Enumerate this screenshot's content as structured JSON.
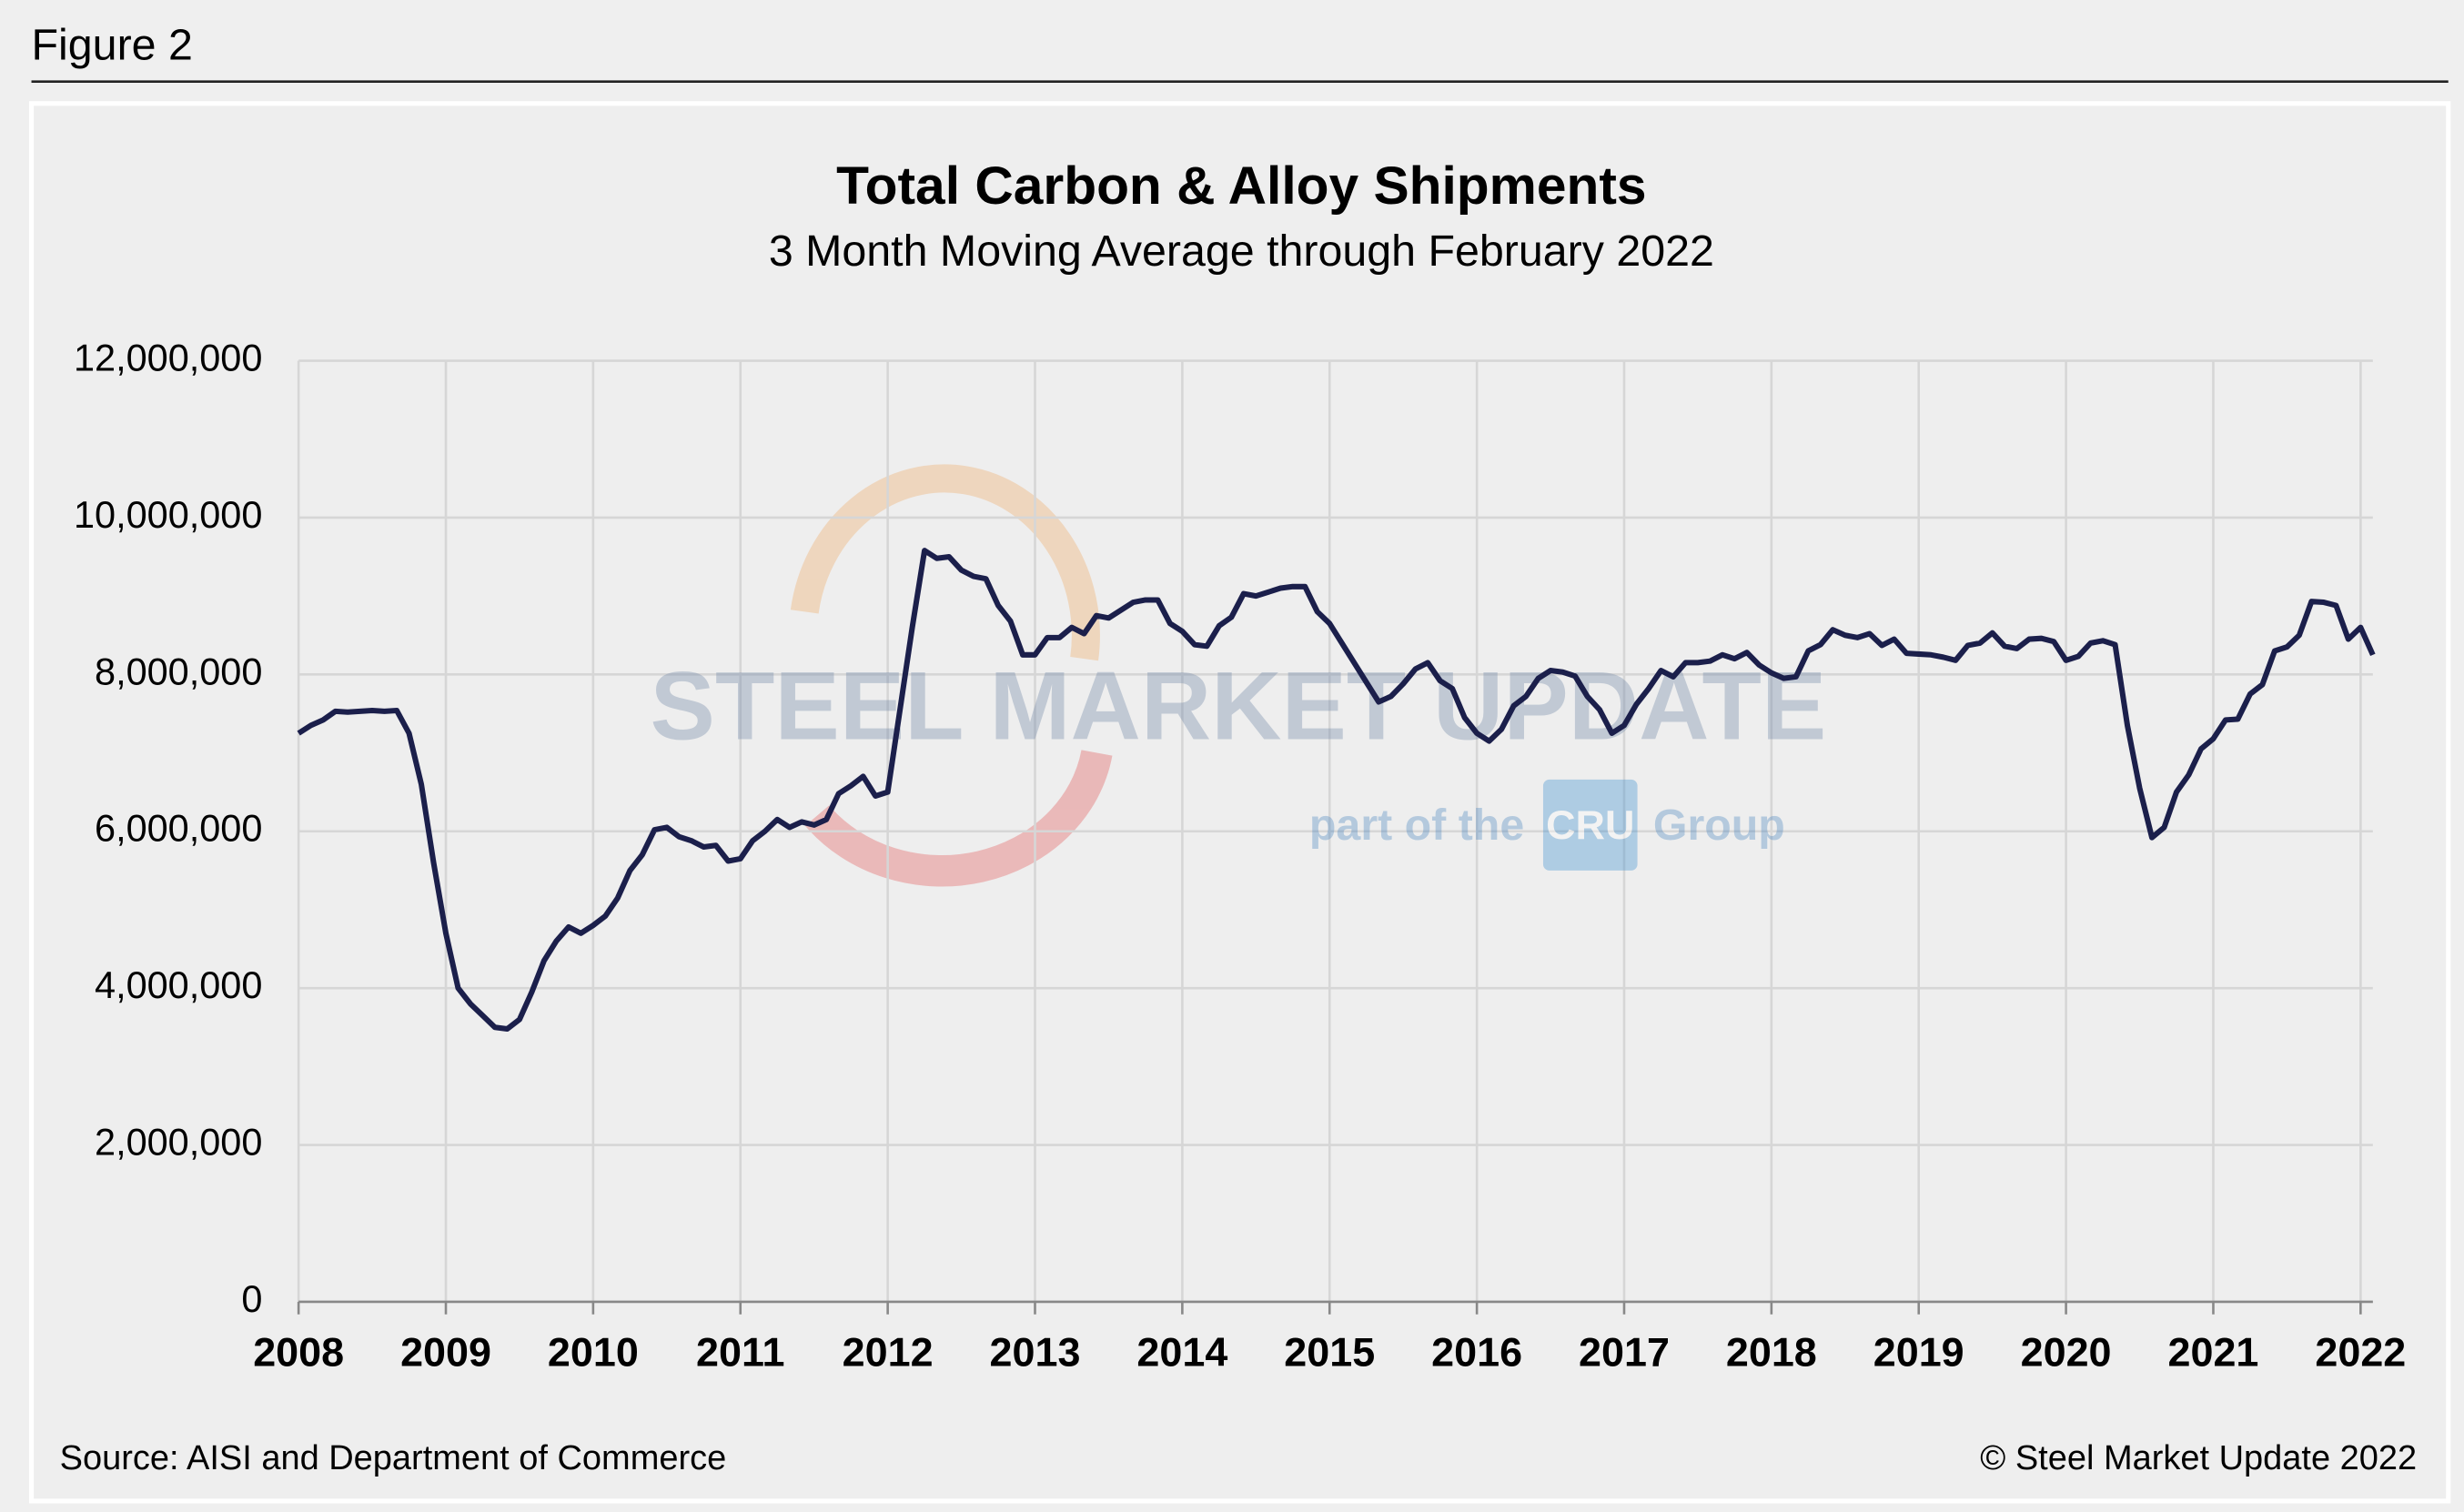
{
  "figure_label": "Figure 2",
  "chart_data": {
    "type": "line",
    "title": "Total Carbon & Alloy Shipments",
    "subtitle": "3 Month Moving Average through February 2022",
    "source": "Source: AISI and Department of Commerce",
    "credit": "© Steel Market Update 2022",
    "watermark": {
      "text": "STEEL MARKET UPDATE",
      "subtext": "part of the",
      "logo": "CRU",
      "subtext2": "Group"
    },
    "color": "#1b1f4b",
    "grid": true,
    "ylim": [
      0,
      12000000
    ],
    "yticks": [
      0,
      {
        "value": 2000000,
        "label": "2,000,000"
      },
      {
        "value": 4000000,
        "label": "4,000,000"
      },
      {
        "value": 6000000,
        "label": "6,000,000"
      },
      {
        "value": 8000000,
        "label": "8,000,000"
      },
      {
        "value": 10000000,
        "label": "10,000,000"
      },
      {
        "value": 12000000,
        "label": "12,000,000"
      }
    ],
    "categories": [
      "2008",
      null,
      null,
      null,
      null,
      null,
      null,
      null,
      null,
      null,
      null,
      null,
      "2009",
      null,
      null,
      null,
      null,
      null,
      null,
      null,
      null,
      null,
      null,
      null,
      "2010",
      null,
      null,
      null,
      null,
      null,
      null,
      null,
      null,
      null,
      null,
      null,
      "2011",
      null,
      null,
      null,
      null,
      null,
      null,
      null,
      null,
      null,
      null,
      null,
      "2012",
      null,
      null,
      null,
      null,
      null,
      null,
      null,
      null,
      null,
      null,
      null,
      "2013",
      null,
      null,
      null,
      null,
      null,
      null,
      null,
      null,
      null,
      null,
      null,
      "2014",
      null,
      null,
      null,
      null,
      null,
      null,
      null,
      null,
      null,
      null,
      null,
      "2015",
      null,
      null,
      null,
      null,
      null,
      null,
      null,
      null,
      null,
      null,
      null,
      "2016",
      null,
      null,
      null,
      null,
      null,
      null,
      null,
      null,
      null,
      null,
      null,
      "2017",
      null,
      null,
      null,
      null,
      null,
      null,
      null,
      null,
      null,
      null,
      null,
      "2018",
      null,
      null,
      null,
      null,
      null,
      null,
      null,
      null,
      null,
      null,
      null,
      "2019",
      null,
      null,
      null,
      null,
      null,
      null,
      null,
      null,
      null,
      null,
      null,
      "2020",
      null,
      null,
      null,
      null,
      null,
      null,
      null,
      null,
      null,
      null,
      null,
      "2021",
      null,
      null,
      null,
      null,
      null,
      null,
      null,
      null,
      null,
      null,
      null,
      "2022",
      null
    ],
    "values": [
      7250000,
      7350000,
      7420000,
      7530000,
      7520000,
      7530000,
      7540000,
      7530000,
      7540000,
      7250000,
      6600000,
      5600000,
      4700000,
      4000000,
      3800000,
      3650000,
      3500000,
      3480000,
      3600000,
      3950000,
      4350000,
      4600000,
      4780000,
      4700000,
      4800000,
      4920000,
      5150000,
      5500000,
      5700000,
      6020000,
      6050000,
      5930000,
      5880000,
      5800000,
      5820000,
      5620000,
      5650000,
      5880000,
      6000000,
      6150000,
      6050000,
      6120000,
      6080000,
      6150000,
      6480000,
      6580000,
      6700000,
      6450000,
      6500000,
      7550000,
      8600000,
      9580000,
      9480000,
      9500000,
      9330000,
      9250000,
      9220000,
      8880000,
      8680000,
      8250000,
      8250000,
      8470000,
      8470000,
      8600000,
      8520000,
      8750000,
      8720000,
      8820000,
      8920000,
      8950000,
      8950000,
      8650000,
      8550000,
      8380000,
      8360000,
      8620000,
      8730000,
      9030000,
      9000000,
      9050000,
      9100000,
      9120000,
      9120000,
      8800000,
      8650000,
      8400000,
      8150000,
      7900000,
      7650000,
      7720000,
      7880000,
      8070000,
      8150000,
      7920000,
      7820000,
      7450000,
      7250000,
      7150000,
      7300000,
      7600000,
      7720000,
      7950000,
      8050000,
      8030000,
      7980000,
      7720000,
      7550000,
      7250000,
      7350000,
      7620000,
      7820000,
      8050000,
      7970000,
      8150000,
      8150000,
      8170000,
      8250000,
      8200000,
      8280000,
      8120000,
      8020000,
      7950000,
      7970000,
      8300000,
      8380000,
      8570000,
      8500000,
      8470000,
      8520000,
      8370000,
      8450000,
      8270000,
      8260000,
      8250000,
      8220000,
      8180000,
      8370000,
      8400000,
      8530000,
      8360000,
      8330000,
      8450000,
      8460000,
      8420000,
      8180000,
      8230000,
      8400000,
      8430000,
      8380000,
      7350000,
      6550000,
      5920000,
      6050000,
      6500000,
      6720000,
      7050000,
      7180000,
      7420000,
      7430000,
      7750000,
      7870000,
      8300000,
      8350000,
      8500000,
      8930000,
      8920000,
      8880000,
      8450000,
      8600000,
      8250000
    ]
  }
}
